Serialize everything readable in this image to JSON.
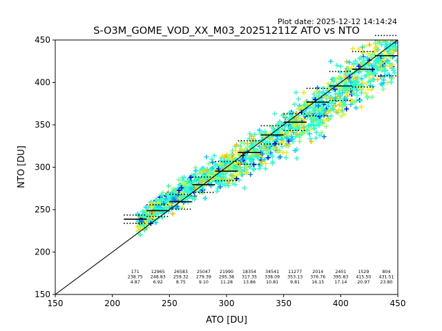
{
  "plot_date": "Plot date: 2025-12-12 14:14:24",
  "chart_data": {
    "type": "scatter",
    "title": "S-O3M_GOME_VOD_XX_M03_20251211Z ATO vs NTO",
    "xlabel": "ATO [DU]",
    "ylabel": "NTO [DU]",
    "xlim": [
      150,
      450
    ],
    "ylim": [
      150,
      450
    ],
    "x_ticks": [
      150,
      200,
      250,
      300,
      350,
      400,
      450
    ],
    "y_ticks": [
      150,
      200,
      250,
      300,
      350,
      400,
      450
    ],
    "grid": false,
    "legend": "none",
    "reference_line": {
      "from": [
        150,
        150
      ],
      "to": [
        450,
        450
      ],
      "color": "#000000"
    },
    "point_colors": [
      "#0000ff",
      "#0080ff",
      "#00d4ff",
      "#29ffce",
      "#7dff7a",
      "#ceff29",
      "#ffe500",
      "#ffb900"
    ],
    "scatter_band": {
      "x_range": [
        222,
        450
      ],
      "description_points": [
        {
          "x": 225,
          "y": 235
        },
        {
          "x": 250,
          "y": 262
        },
        {
          "x": 275,
          "y": 282
        },
        {
          "x": 300,
          "y": 296
        },
        {
          "x": 325,
          "y": 318
        },
        {
          "x": 350,
          "y": 340
        },
        {
          "x": 375,
          "y": 362
        },
        {
          "x": 400,
          "y": 390
        },
        {
          "x": 425,
          "y": 418
        },
        {
          "x": 450,
          "y": 440
        }
      ]
    },
    "bins": [
      {
        "x_start": 210,
        "x_end": 230,
        "count": "171",
        "mean": "238.75",
        "std": "4.87"
      },
      {
        "x_start": 230,
        "x_end": 250,
        "count": "12965",
        "mean": "248.83",
        "std": "6.92"
      },
      {
        "x_start": 250,
        "x_end": 270,
        "count": "26583",
        "mean": "259.32",
        "std": "8.75"
      },
      {
        "x_start": 270,
        "x_end": 290,
        "count": "25047",
        "mean": "279.39",
        "std": "9.10"
      },
      {
        "x_start": 290,
        "x_end": 310,
        "count": "21990",
        "mean": "295.38",
        "std": "11.28"
      },
      {
        "x_start": 310,
        "x_end": 330,
        "count": "18354",
        "mean": "317.35",
        "std": "13.86"
      },
      {
        "x_start": 330,
        "x_end": 350,
        "count": "34541",
        "mean": "338.09",
        "std": "10.81"
      },
      {
        "x_start": 350,
        "x_end": 370,
        "count": "11277",
        "mean": "353.13",
        "std": "9.81"
      },
      {
        "x_start": 370,
        "x_end": 390,
        "count": "2014",
        "mean": "376.76",
        "std": "16.15"
      },
      {
        "x_start": 390,
        "x_end": 410,
        "count": "2401",
        "mean": "395.83",
        "std": "17.14"
      },
      {
        "x_start": 410,
        "x_end": 430,
        "count": "1529",
        "mean": "415.50",
        "std": "20.97"
      },
      {
        "x_start": 430,
        "x_end": 450,
        "count": "804",
        "mean": "431.51",
        "std": "23.80"
      }
    ]
  }
}
